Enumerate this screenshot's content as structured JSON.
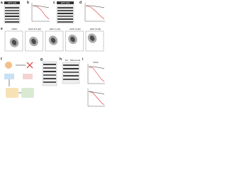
{
  "panels": {
    "a": {
      "letter": "a",
      "header": "EZH7 (μM)"
    },
    "b": {
      "letter": "b"
    },
    "c": {
      "letter": "c",
      "header": "EZH7 (μM)"
    },
    "d": {
      "letter": "d"
    },
    "e": {
      "letter": "e",
      "plots": [
        "DMSO",
        "EZH7 (0.5 μM)",
        "EZH7 (1 μM)",
        "EZH7 (2 μM)",
        "EZH7 (5 μM)"
      ]
    },
    "f": {
      "letter": "f"
    },
    "g": {
      "letter": "g"
    },
    "h": {
      "letter": "h",
      "columns": [
        "Scr",
        "Ribosomal"
      ]
    },
    "i": {
      "letter": "i",
      "series": "Mock"
    }
  }
}
